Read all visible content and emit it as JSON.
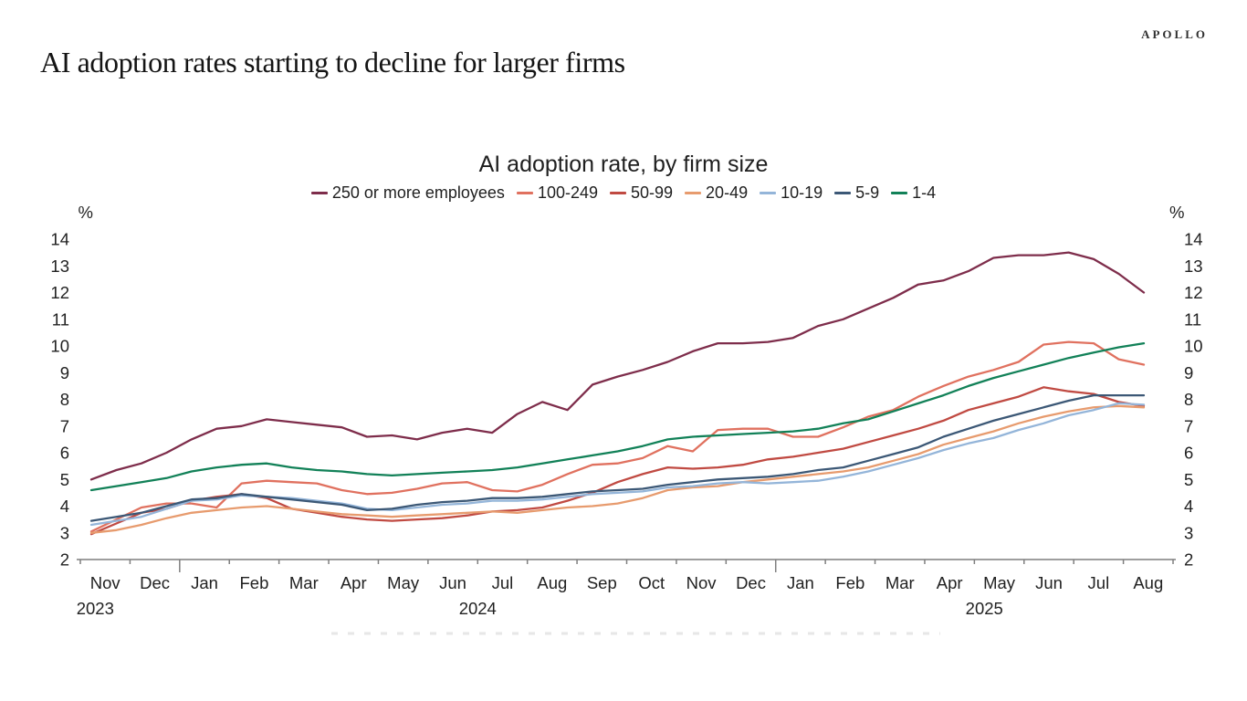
{
  "page": {
    "logo": "APOLLO",
    "headline": "AI adoption rates starting to decline for larger firms"
  },
  "chart_data": {
    "type": "line",
    "title": "AI adoption rate, by firm size",
    "unit_label": "%",
    "ylim": [
      2,
      14
    ],
    "yticks": [
      2,
      3,
      4,
      5,
      6,
      7,
      8,
      9,
      10,
      11,
      12,
      13,
      14
    ],
    "grid": false,
    "legend_position": "top",
    "points_per_month": 2,
    "x_months": [
      "Nov",
      "Dec",
      "Jan",
      "Feb",
      "Mar",
      "Apr",
      "May",
      "Jun",
      "Jul",
      "Aug",
      "Sep",
      "Oct",
      "Nov",
      "Dec",
      "Jan",
      "Feb",
      "Mar",
      "Apr",
      "May",
      "Jun",
      "Jul",
      "Aug"
    ],
    "x_years": [
      {
        "label": "2023",
        "pos": 0.3
      },
      {
        "label": "2024",
        "pos": 8.0
      },
      {
        "label": "2025",
        "pos": 18.2
      }
    ],
    "year_boundaries": [
      2,
      14
    ],
    "axis_color": "#7f7f7f",
    "label_color": "#212121",
    "series": [
      {
        "name": "250 or more employees",
        "color": "#7e2d4b",
        "values": [
          5.0,
          5.35,
          5.6,
          6.0,
          6.5,
          6.9,
          7.0,
          7.25,
          7.15,
          7.05,
          6.95,
          6.6,
          6.65,
          6.5,
          6.75,
          6.9,
          6.75,
          7.45,
          7.9,
          7.6,
          8.55,
          8.85,
          9.1,
          9.4,
          9.8,
          10.1,
          10.1,
          10.15,
          10.3,
          10.75,
          11.0,
          11.4,
          11.8,
          12.3,
          12.45,
          12.8,
          13.3,
          13.4,
          13.4,
          13.5,
          13.25,
          12.7,
          12.0
        ]
      },
      {
        "name": "100-249",
        "color": "#e0715f",
        "values": [
          3.05,
          3.5,
          3.95,
          4.1,
          4.1,
          3.95,
          4.85,
          4.95,
          4.9,
          4.85,
          4.6,
          4.45,
          4.5,
          4.65,
          4.85,
          4.9,
          4.6,
          4.55,
          4.8,
          5.2,
          5.55,
          5.6,
          5.8,
          6.25,
          6.05,
          6.85,
          6.9,
          6.9,
          6.6,
          6.6,
          6.95,
          7.35,
          7.6,
          8.1,
          8.5,
          8.85,
          9.1,
          9.4,
          10.05,
          10.15,
          10.1,
          9.5,
          9.3
        ]
      },
      {
        "name": "50-99",
        "color": "#c04a42",
        "values": [
          2.95,
          3.35,
          3.75,
          3.9,
          4.2,
          4.35,
          4.45,
          4.3,
          3.9,
          3.75,
          3.6,
          3.5,
          3.45,
          3.5,
          3.55,
          3.65,
          3.8,
          3.85,
          3.95,
          4.2,
          4.5,
          4.9,
          5.2,
          5.45,
          5.4,
          5.45,
          5.55,
          5.75,
          5.85,
          6.0,
          6.15,
          6.4,
          6.65,
          6.9,
          7.2,
          7.6,
          7.85,
          8.1,
          8.45,
          8.3,
          8.2,
          7.9,
          7.75
        ]
      },
      {
        "name": "20-49",
        "color": "#e79b6e",
        "values": [
          3.0,
          3.1,
          3.3,
          3.55,
          3.75,
          3.85,
          3.95,
          4.0,
          3.9,
          3.8,
          3.7,
          3.65,
          3.6,
          3.65,
          3.7,
          3.75,
          3.8,
          3.75,
          3.85,
          3.95,
          4.0,
          4.1,
          4.3,
          4.6,
          4.7,
          4.75,
          4.9,
          5.0,
          5.1,
          5.2,
          5.3,
          5.45,
          5.7,
          5.95,
          6.3,
          6.55,
          6.8,
          7.1,
          7.35,
          7.55,
          7.7,
          7.75,
          7.7
        ]
      },
      {
        "name": "10-19",
        "color": "#94b5d9",
        "values": [
          3.3,
          3.45,
          3.6,
          3.9,
          4.2,
          4.25,
          4.4,
          4.35,
          4.3,
          4.2,
          4.1,
          3.9,
          3.85,
          3.95,
          4.05,
          4.1,
          4.2,
          4.2,
          4.25,
          4.35,
          4.45,
          4.5,
          4.55,
          4.7,
          4.75,
          4.85,
          4.9,
          4.85,
          4.9,
          4.95,
          5.1,
          5.3,
          5.55,
          5.8,
          6.1,
          6.35,
          6.55,
          6.85,
          7.1,
          7.4,
          7.6,
          7.85,
          7.8
        ]
      },
      {
        "name": "5-9",
        "color": "#3c5876",
        "values": [
          3.45,
          3.6,
          3.75,
          4.0,
          4.25,
          4.3,
          4.45,
          4.35,
          4.25,
          4.15,
          4.05,
          3.85,
          3.9,
          4.05,
          4.15,
          4.2,
          4.3,
          4.3,
          4.35,
          4.45,
          4.55,
          4.6,
          4.65,
          4.8,
          4.9,
          5.0,
          5.05,
          5.1,
          5.2,
          5.35,
          5.45,
          5.7,
          5.95,
          6.2,
          6.6,
          6.9,
          7.2,
          7.45,
          7.7,
          7.95,
          8.15,
          8.15,
          8.15
        ]
      },
      {
        "name": "1-4",
        "color": "#128158",
        "values": [
          4.6,
          4.75,
          4.9,
          5.05,
          5.3,
          5.45,
          5.55,
          5.6,
          5.45,
          5.35,
          5.3,
          5.2,
          5.15,
          5.2,
          5.25,
          5.3,
          5.35,
          5.45,
          5.6,
          5.75,
          5.9,
          6.05,
          6.25,
          6.5,
          6.6,
          6.65,
          6.7,
          6.75,
          6.8,
          6.9,
          7.1,
          7.25,
          7.55,
          7.85,
          8.15,
          8.5,
          8.8,
          9.05,
          9.3,
          9.55,
          9.75,
          9.95,
          10.1
        ]
      }
    ]
  }
}
